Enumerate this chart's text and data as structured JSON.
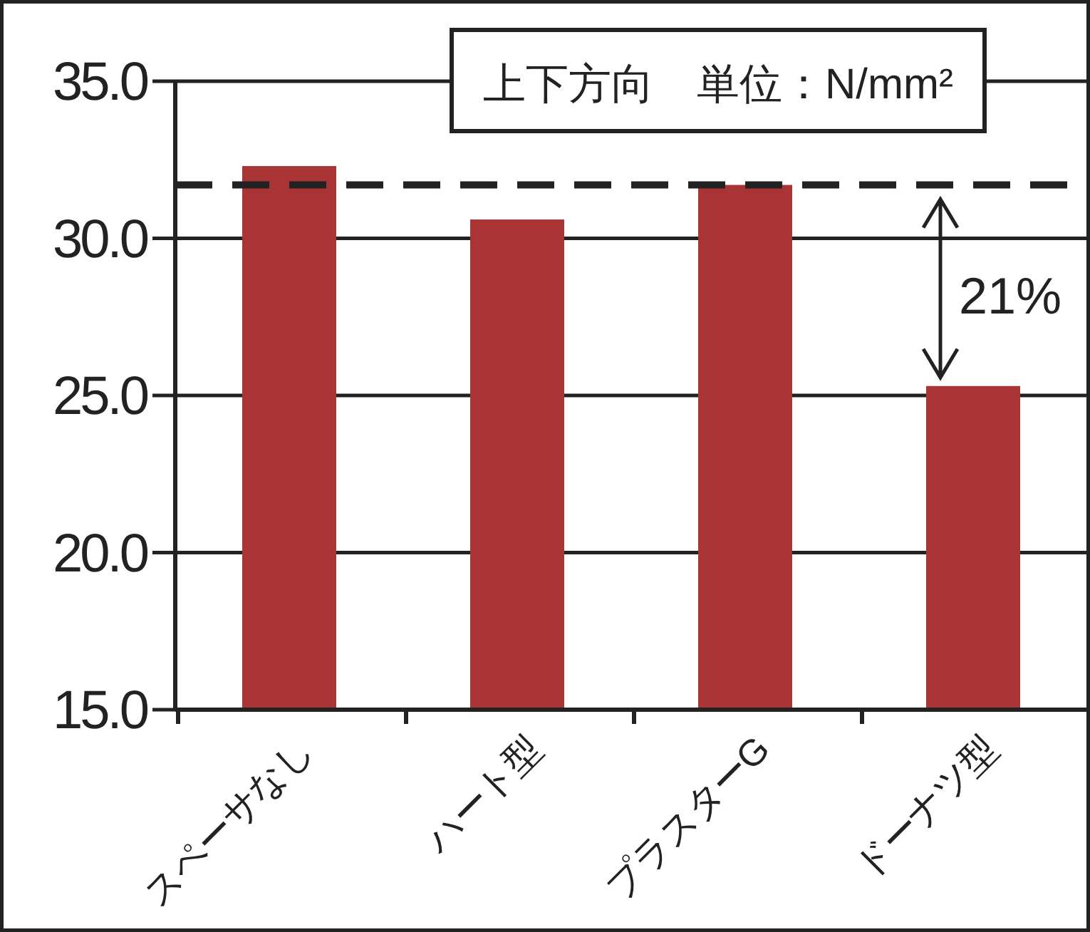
{
  "chart_data": {
    "type": "bar",
    "title": "上下方向　単位：N/mm²",
    "categories": [
      "スペーサなし",
      "ハート型",
      "プラスターG",
      "ドーナツ型"
    ],
    "values": [
      32.3,
      30.6,
      31.7,
      25.3
    ],
    "color": "#a83436",
    "ylim": [
      15,
      35
    ],
    "yticks": [
      {
        "value": 15,
        "label": "15.0"
      },
      {
        "value": 20,
        "label": "20.0"
      },
      {
        "value": 25,
        "label": "25.0"
      },
      {
        "value": 30,
        "label": "30.0"
      },
      {
        "value": 35,
        "label": "35.0"
      }
    ],
    "grid": "y",
    "ref_lines": [
      {
        "axis": "y",
        "value": 31.7,
        "color": "#222222",
        "line_style": "dashed"
      }
    ],
    "annotations": [
      "21%"
    ]
  }
}
